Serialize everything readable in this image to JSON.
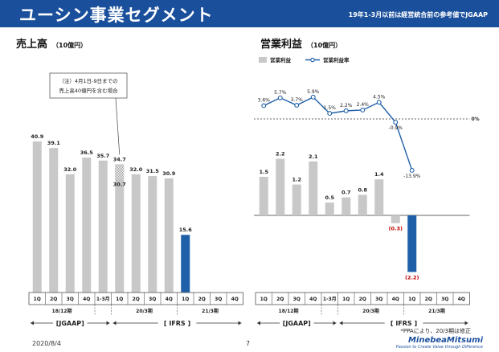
{
  "header": {
    "title": "ユーシン事業セグメント",
    "note": "19年1-3月以前は経営統合前の参考値でJGAAP"
  },
  "footer": {
    "date": "2020/8/4",
    "page": "7",
    "brand": "MinebeaMitsumi",
    "tagline": "Passion to Create Value through Difference"
  },
  "colors": {
    "gray_bar": "#c8c8c8",
    "accent": "#1f5fa8",
    "negative": "#c00000"
  },
  "chart_data": [
    {
      "type": "bar",
      "title": "売上高",
      "unit": "（10億円）",
      "categories": [
        "1Q",
        "2Q",
        "3Q",
        "4Q",
        "1-3月",
        "1Q",
        "2Q",
        "3Q",
        "4Q",
        "1Q",
        "2Q",
        "3Q",
        "4Q"
      ],
      "values": [
        40.9,
        39.1,
        32.0,
        36.5,
        35.7,
        34.7,
        32.0,
        31.5,
        30.9,
        15.6,
        null,
        null,
        null
      ],
      "value_labels": [
        "40.9",
        "39.1",
        "32.0",
        "36.5",
        "35.7",
        "34.7",
        "32.0",
        "31.5",
        "30.9",
        "15.6",
        "",
        "",
        ""
      ],
      "highlight_index": 9,
      "inner_label": "30.7",
      "inner_index": 5,
      "groups": [
        {
          "label": "18/12期",
          "start": 0,
          "end": 3
        },
        {
          "label": "20/3期",
          "start": 5,
          "end": 8
        },
        {
          "label": "21/3期",
          "start": 9,
          "end": 12
        }
      ],
      "standards": [
        {
          "label": "[JGAAP]",
          "start": 0,
          "end": 4
        },
        {
          "label": "[ IFRS ]",
          "start": 5,
          "end": 12
        }
      ],
      "annotation": [
        "（注）4月1日-9日までの",
        "売上高40億円を含む場合"
      ],
      "ylim": [
        0,
        42
      ]
    },
    {
      "type": "bar+line",
      "title": "営業利益",
      "unit": "（10億円）",
      "legend": [
        "営業利益",
        "営業利益率"
      ],
      "categories": [
        "1Q",
        "2Q",
        "3Q",
        "4Q",
        "1-3月",
        "1Q",
        "2Q",
        "3Q",
        "4Q",
        "1Q",
        "2Q",
        "3Q",
        "4Q"
      ],
      "values": [
        1.5,
        2.2,
        1.2,
        2.1,
        0.5,
        0.7,
        0.8,
        1.4,
        -0.3,
        -2.2,
        null,
        null,
        null
      ],
      "value_labels": [
        "1.5",
        "2.2",
        "1.2",
        "2.1",
        "0.5",
        "0.7",
        "0.8",
        "1.4",
        "(0.3)",
        "(2.2)",
        "",
        "",
        ""
      ],
      "margin": [
        3.6,
        5.7,
        3.7,
        5.9,
        1.5,
        2.2,
        2.4,
        4.5,
        -0.9,
        -13.9,
        null,
        null,
        null
      ],
      "margin_labels": [
        "3.6%",
        "5.7%",
        "3.7%",
        "5.9%",
        "1.5%",
        "2.2%",
        "2.4%",
        "4.5%",
        "-0.9%",
        "-13.9%",
        "",
        "",
        ""
      ],
      "zero_label": "0%",
      "groups": [
        {
          "label": "18/12期",
          "start": 0,
          "end": 3
        },
        {
          "label": "20/3期",
          "start": 5,
          "end": 8
        },
        {
          "label": "21/3期",
          "start": 9,
          "end": 12
        }
      ],
      "standards": [
        {
          "label": "[JGAAP]",
          "start": 0,
          "end": 4
        },
        {
          "label": "[ IFRS ]",
          "start": 5,
          "end": 12
        }
      ],
      "footnote": "*PPAにより、20/3期は修正"
    }
  ]
}
